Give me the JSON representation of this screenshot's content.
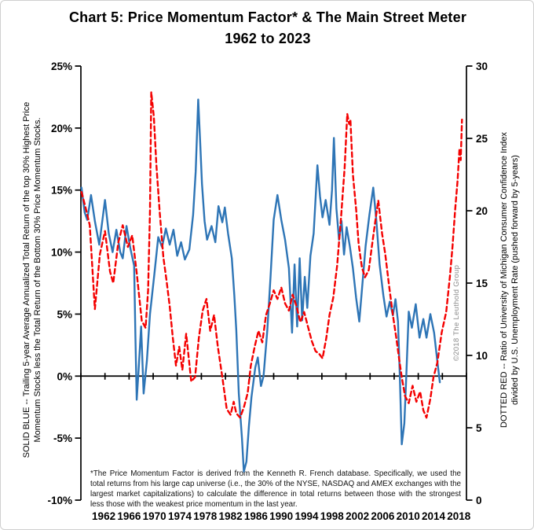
{
  "title": {
    "line1": "Chart 5: Price Momentum Factor* & The Main Street Meter",
    "line2": "1962 to 2023"
  },
  "left_axis_title": {
    "line1": "SOLID BLUE -- Trailing 5-year Average Annualized Total Return of the top 30% Highest Price",
    "line2": "Momentum Stocks less the Total Return of the Bottom 30% Price Momentum Stocks."
  },
  "right_axis_title": {
    "line1": "DOTTED RED -- Ratio of University of Michigan Consumer Confidence Index",
    "line2": "divided by U.S. Unemployment Rate (pushed forward by 5-years)"
  },
  "copyright": "©2018 The Leuthold Group",
  "footnote": "*The Price Momentum Factor is derived from the Kenneth R. French database. Specifically, we used the total returns from his large cap universe (i.e., the 30% of the NYSE, NASDAQ and AMEX exchanges with the largest market capitalizations) to calculate the difference in total returns between those with the strongest less those with the weakest price momentum in the last year.",
  "colors": {
    "blue_series": "#2E75B6",
    "red_series": "#F40000",
    "axis": "#000000",
    "copyright_gray": "#8a8a8a"
  },
  "chart_data": {
    "type": "line",
    "title": "Chart 5: Price Momentum Factor* & The Main Street Meter 1962 to 2023",
    "x_range": [
      1958.4,
      2019.2
    ],
    "x_tick_labels": [
      "1962",
      "1966",
      "1970",
      "1974",
      "1978",
      "1982",
      "1986",
      "1990",
      "1994",
      "1998",
      "2002",
      "2006",
      "2010",
      "2014",
      "2018"
    ],
    "x_tick_years": [
      1962,
      1966,
      1970,
      1974,
      1978,
      1982,
      1986,
      1990,
      1994,
      1998,
      2002,
      2006,
      2010,
      2014,
      2018
    ],
    "x_minor_tick_count": 17,
    "grid": false,
    "legend_position": "axis-titles",
    "left_axis": {
      "label": "SOLID BLUE -- Trailing 5-year Average Annualized Total Return of the top 30% Highest Price Momentum Stocks less the Total Return of the Bottom 30% Price Momentum Stocks.",
      "tick_labels": [
        "25%",
        "20%",
        "15%",
        "10%",
        "5%",
        "0%",
        "-5%",
        "-10%"
      ],
      "tick_values": [
        25,
        20,
        15,
        10,
        5,
        0,
        -5,
        -10
      ],
      "ylim": [
        -10,
        25
      ]
    },
    "right_axis": {
      "label": "DOTTED RED -- Ratio of University of Michigan Consumer Confidence Index divided by U.S. Unemployment Rate (pushed forward by 5-years)",
      "tick_labels": [
        "30",
        "25",
        "20",
        "15",
        "10",
        "5",
        "0"
      ],
      "tick_values": [
        30,
        25,
        20,
        15,
        10,
        5,
        0
      ],
      "ylim": [
        0,
        30
      ]
    },
    "series": [
      {
        "name": "Price Momentum Factor (solid blue, left axis, %)",
        "axis": "left",
        "style": "solid",
        "color": "#2E75B6",
        "points": [
          [
            1958.5,
            15.2
          ],
          [
            1959.0,
            13.2
          ],
          [
            1959.4,
            12.6
          ],
          [
            1960.0,
            14.6
          ],
          [
            1960.6,
            12.5
          ],
          [
            1961.3,
            10.6
          ],
          [
            1962.2,
            14.2
          ],
          [
            1962.8,
            11.5
          ],
          [
            1963.4,
            10.0
          ],
          [
            1964.0,
            11.8
          ],
          [
            1964.6,
            10.0
          ],
          [
            1965.0,
            9.5
          ],
          [
            1965.6,
            12.1
          ],
          [
            1966.2,
            10.3
          ],
          [
            1966.8,
            8.9
          ],
          [
            1967.0,
            3.0
          ],
          [
            1967.2,
            -1.9
          ],
          [
            1967.5,
            0.5
          ],
          [
            1967.9,
            4.0
          ],
          [
            1968.3,
            -1.4
          ],
          [
            1968.8,
            1.2
          ],
          [
            1969.3,
            5.0
          ],
          [
            1970.0,
            8.3
          ],
          [
            1970.6,
            11.2
          ],
          [
            1971.2,
            10.4
          ],
          [
            1971.8,
            11.9
          ],
          [
            1972.4,
            10.6
          ],
          [
            1973.0,
            11.8
          ],
          [
            1973.6,
            9.7
          ],
          [
            1974.2,
            10.8
          ],
          [
            1974.8,
            9.4
          ],
          [
            1975.5,
            10.2
          ],
          [
            1976.1,
            13.0
          ],
          [
            1976.5,
            16.5
          ],
          [
            1976.9,
            22.3
          ],
          [
            1977.2,
            19.0
          ],
          [
            1977.5,
            15.5
          ],
          [
            1977.9,
            12.5
          ],
          [
            1978.3,
            11.0
          ],
          [
            1979.0,
            12.1
          ],
          [
            1979.6,
            10.8
          ],
          [
            1980.1,
            13.7
          ],
          [
            1980.7,
            12.4
          ],
          [
            1981.1,
            13.6
          ],
          [
            1981.6,
            11.5
          ],
          [
            1982.2,
            9.5
          ],
          [
            1982.6,
            6.5
          ],
          [
            1982.9,
            3.7
          ],
          [
            1983.3,
            -1.4
          ],
          [
            1983.8,
            -5.0
          ],
          [
            1984.1,
            -7.7
          ],
          [
            1984.5,
            -6.9
          ],
          [
            1984.9,
            -4.0
          ],
          [
            1985.3,
            -1.7
          ],
          [
            1985.9,
            0.7
          ],
          [
            1986.3,
            1.5
          ],
          [
            1986.8,
            -0.8
          ],
          [
            1987.2,
            0.0
          ],
          [
            1987.8,
            3.7
          ],
          [
            1988.3,
            8.0
          ],
          [
            1988.8,
            12.6
          ],
          [
            1989.4,
            14.6
          ],
          [
            1990.0,
            12.6
          ],
          [
            1990.6,
            11.0
          ],
          [
            1991.2,
            8.7
          ],
          [
            1991.7,
            3.5
          ],
          [
            1992.1,
            9.0
          ],
          [
            1992.5,
            4.0
          ],
          [
            1992.9,
            9.5
          ],
          [
            1993.3,
            4.5
          ],
          [
            1993.7,
            8.0
          ],
          [
            1994.1,
            5.5
          ],
          [
            1994.6,
            9.7
          ],
          [
            1995.1,
            11.5
          ],
          [
            1995.7,
            17.0
          ],
          [
            1996.1,
            14.5
          ],
          [
            1996.5,
            12.8
          ],
          [
            1997.0,
            14.2
          ],
          [
            1997.6,
            12.2
          ],
          [
            1998.0,
            15.0
          ],
          [
            1998.3,
            19.2
          ],
          [
            1998.7,
            13.5
          ],
          [
            1999.1,
            11.0
          ],
          [
            1999.5,
            12.5
          ],
          [
            1999.9,
            9.8
          ],
          [
            2000.3,
            12.0
          ],
          [
            2000.8,
            10.5
          ],
          [
            2001.3,
            8.7
          ],
          [
            2001.8,
            6.3
          ],
          [
            2002.3,
            4.4
          ],
          [
            2002.8,
            7.5
          ],
          [
            2003.3,
            10.5
          ],
          [
            2003.9,
            13.0
          ],
          [
            2004.5,
            15.2
          ],
          [
            2005.0,
            12.5
          ],
          [
            2005.5,
            9.0
          ],
          [
            2006.1,
            6.5
          ],
          [
            2006.6,
            4.8
          ],
          [
            2007.1,
            6.0
          ],
          [
            2007.6,
            4.9
          ],
          [
            2008.0,
            6.2
          ],
          [
            2008.4,
            4.4
          ],
          [
            2008.7,
            -0.1
          ],
          [
            2009.0,
            -5.5
          ],
          [
            2009.4,
            -3.8
          ],
          [
            2009.7,
            -0.1
          ],
          [
            2010.1,
            5.2
          ],
          [
            2010.6,
            3.9
          ],
          [
            2011.2,
            5.8
          ],
          [
            2011.8,
            3.1
          ],
          [
            2012.4,
            4.6
          ],
          [
            2012.9,
            3.1
          ],
          [
            2013.5,
            5.0
          ],
          [
            2014.1,
            3.5
          ],
          [
            2014.6,
            1.2
          ],
          [
            2015.0,
            -0.5
          ]
        ]
      },
      {
        "name": "Main Street Meter (dotted red, right axis, ratio)",
        "axis": "right",
        "style": "dashed",
        "color": "#F40000",
        "points": [
          [
            1958.5,
            21.3
          ],
          [
            1959.2,
            20.1
          ],
          [
            1959.8,
            19.0
          ],
          [
            1960.6,
            13.2
          ],
          [
            1961.4,
            17.0
          ],
          [
            1962.2,
            18.6
          ],
          [
            1963.0,
            15.8
          ],
          [
            1963.5,
            15.0
          ],
          [
            1964.3,
            17.8
          ],
          [
            1965.0,
            19.0
          ],
          [
            1965.8,
            17.5
          ],
          [
            1966.5,
            18.3
          ],
          [
            1967.2,
            15.7
          ],
          [
            1968.0,
            12.4
          ],
          [
            1968.6,
            11.9
          ],
          [
            1969.0,
            14.5
          ],
          [
            1969.3,
            20.0
          ],
          [
            1969.5,
            28.2
          ],
          [
            1969.9,
            26.5
          ],
          [
            1970.3,
            23.2
          ],
          [
            1970.8,
            20.1
          ],
          [
            1971.4,
            16.8
          ],
          [
            1971.9,
            15.2
          ],
          [
            1972.4,
            13.4
          ],
          [
            1972.9,
            11.2
          ],
          [
            1973.4,
            9.3
          ],
          [
            1973.9,
            10.6
          ],
          [
            1974.4,
            9.0
          ],
          [
            1975.0,
            11.5
          ],
          [
            1975.8,
            8.2
          ],
          [
            1976.4,
            8.5
          ],
          [
            1977.0,
            11.2
          ],
          [
            1977.6,
            13.1
          ],
          [
            1978.2,
            13.9
          ],
          [
            1978.8,
            11.7
          ],
          [
            1979.4,
            12.8
          ],
          [
            1980.0,
            10.6
          ],
          [
            1980.7,
            8.5
          ],
          [
            1981.4,
            6.3
          ],
          [
            1982.0,
            5.9
          ],
          [
            1982.5,
            6.8
          ],
          [
            1982.9,
            6.0
          ],
          [
            1983.5,
            5.7
          ],
          [
            1984.1,
            6.4
          ],
          [
            1984.7,
            7.4
          ],
          [
            1985.2,
            9.3
          ],
          [
            1985.8,
            10.6
          ],
          [
            1986.4,
            11.7
          ],
          [
            1987.0,
            10.9
          ],
          [
            1987.6,
            12.8
          ],
          [
            1988.2,
            13.6
          ],
          [
            1988.8,
            14.5
          ],
          [
            1989.4,
            13.9
          ],
          [
            1990.0,
            14.7
          ],
          [
            1990.6,
            13.6
          ],
          [
            1991.2,
            13.1
          ],
          [
            1991.8,
            14.2
          ],
          [
            1992.4,
            13.4
          ],
          [
            1993.0,
            12.3
          ],
          [
            1993.6,
            13.0
          ],
          [
            1994.2,
            12.0
          ],
          [
            1994.8,
            11.0
          ],
          [
            1995.4,
            10.3
          ],
          [
            1996.0,
            10.1
          ],
          [
            1996.5,
            9.8
          ],
          [
            1997.1,
            11.2
          ],
          [
            1997.6,
            12.8
          ],
          [
            1998.2,
            14.0
          ],
          [
            1998.8,
            16.2
          ],
          [
            1999.4,
            19.4
          ],
          [
            2000.0,
            23.0
          ],
          [
            2000.4,
            26.7
          ],
          [
            2000.7,
            26.0
          ],
          [
            2000.9,
            26.3
          ],
          [
            2001.3,
            22.5
          ],
          [
            2001.8,
            20.1
          ],
          [
            2002.2,
            17.7
          ],
          [
            2002.7,
            16.1
          ],
          [
            2003.2,
            15.4
          ],
          [
            2003.8,
            15.9
          ],
          [
            2004.3,
            17.6
          ],
          [
            2004.8,
            19.2
          ],
          [
            2005.3,
            20.7
          ],
          [
            2005.9,
            18.4
          ],
          [
            2006.4,
            17.0
          ],
          [
            2007.0,
            14.8
          ],
          [
            2007.6,
            12.8
          ],
          [
            2008.1,
            11.3
          ],
          [
            2008.6,
            9.7
          ],
          [
            2009.0,
            8.5
          ],
          [
            2009.5,
            7.2
          ],
          [
            2010.1,
            6.7
          ],
          [
            2010.7,
            7.9
          ],
          [
            2011.3,
            6.8
          ],
          [
            2011.9,
            7.5
          ],
          [
            2012.4,
            6.2
          ],
          [
            2012.9,
            5.7
          ],
          [
            2013.5,
            7.0
          ],
          [
            2014.0,
            8.5
          ],
          [
            2014.6,
            9.5
          ],
          [
            2015.3,
            11.6
          ],
          [
            2016.0,
            13.0
          ],
          [
            2016.6,
            15.5
          ],
          [
            2017.0,
            17.5
          ],
          [
            2017.4,
            20.0
          ],
          [
            2017.8,
            22.1
          ],
          [
            2018.1,
            24.3
          ],
          [
            2018.3,
            23.5
          ],
          [
            2018.5,
            26.3
          ]
        ]
      }
    ]
  }
}
